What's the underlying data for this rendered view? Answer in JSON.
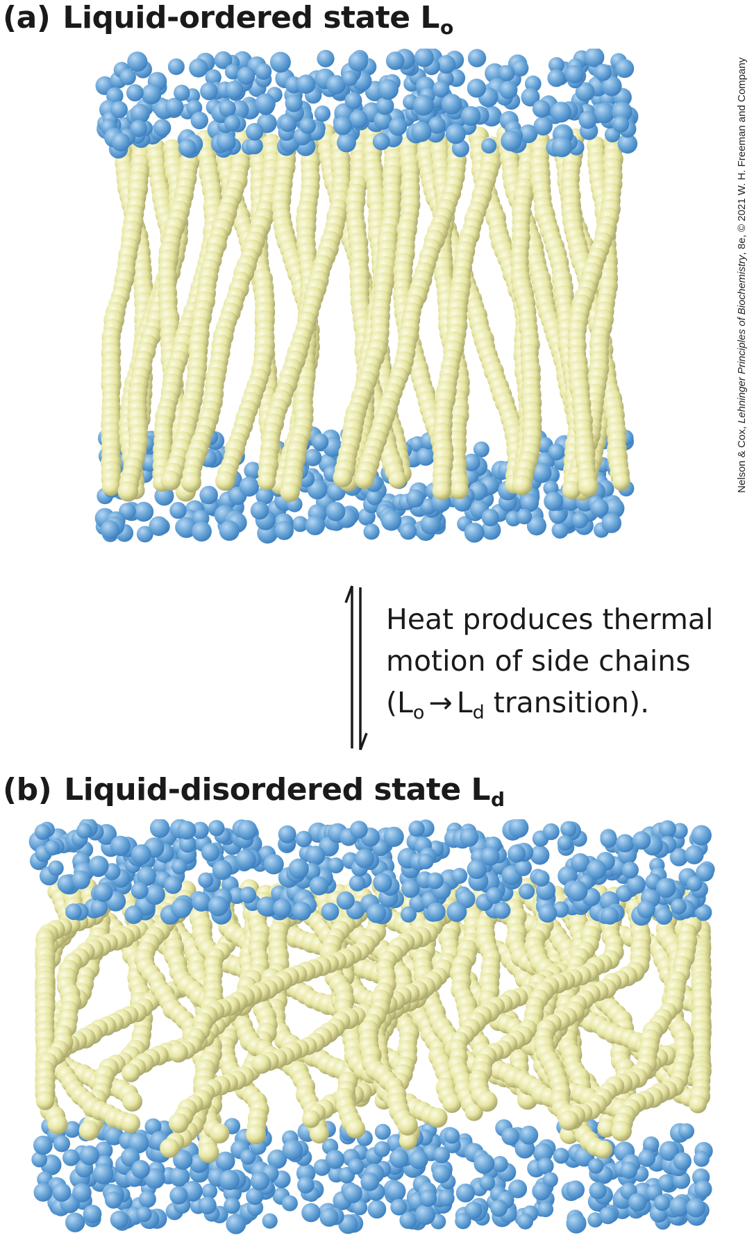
{
  "panel_a": {
    "letter": "(a)",
    "title": "Liquid-ordered state L",
    "subscript": "o"
  },
  "panel_b": {
    "letter": "(b)",
    "title": "Liquid-disordered state L",
    "subscript": "d"
  },
  "caption": {
    "line1": "Heat produces thermal",
    "line2": "motion of side chains",
    "line3_open": "(L",
    "line3_sub1": "o",
    "line3_arrow": "→",
    "line3_mid": "L",
    "line3_sub2": "d",
    "line3_close": " transition)."
  },
  "credit": {
    "prefix": "Nelson & Cox, ",
    "book": "Lehninger Principles of Biochemistry",
    "suffix": ", 8e, © 2021 W. H. Freeman and Company"
  },
  "colors": {
    "head_group": "#6aa6d8",
    "head_group_shade": "#3d7fbf",
    "tail": "#ecebaa",
    "tail_shade": "#a9a76a",
    "background": "#ffffff"
  }
}
